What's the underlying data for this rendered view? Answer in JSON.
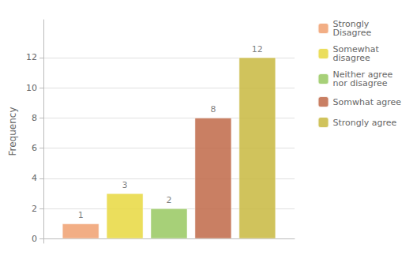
{
  "chart_data": {
    "type": "bar",
    "y_label": "Frequency",
    "categories": [
      null
    ],
    "series": [
      {
        "name": "Strongly\nDisagree",
        "color": "#F0A070",
        "values": [
          1
        ]
      },
      {
        "name": "Somewhat\ndisagree",
        "color": "#E8D840",
        "values": [
          3
        ]
      },
      {
        "name": "Neither agree\nnor disagree",
        "color": "#98C860",
        "values": [
          2
        ]
      },
      {
        "name": "Somwhat agree",
        "color": "#C06848",
        "values": [
          8
        ]
      },
      {
        "name": "Strongly agree",
        "color": "#C8B840",
        "values": [
          12
        ]
      }
    ],
    "ylim": [
      -0.3,
      14.5
    ],
    "yticks": [
      0,
      2,
      4,
      6,
      8,
      10,
      12
    ],
    "grid": true,
    "legend": "right",
    "data_labels": true,
    "tick_labels": "y"
  }
}
